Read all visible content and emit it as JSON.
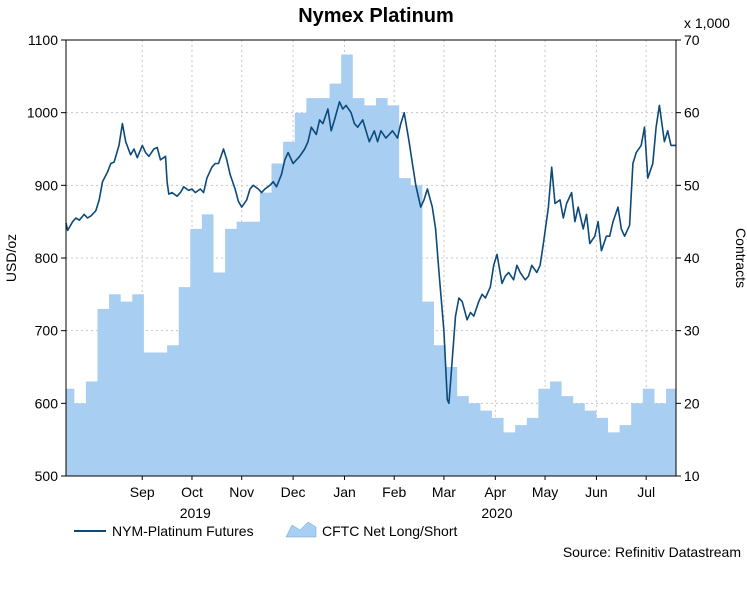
{
  "chart_data": {
    "type": "line",
    "title": "Nymex Platinum",
    "left_axis": {
      "label": "USD/oz",
      "ylim": [
        500,
        1100
      ],
      "ticks": [
        500,
        600,
        700,
        800,
        900,
        1000,
        1100
      ]
    },
    "right_axis": {
      "label": "Contracts",
      "multiplier_label": "x 1,000",
      "ylim": [
        10,
        70
      ],
      "ticks": [
        10,
        20,
        30,
        40,
        50,
        60,
        70
      ]
    },
    "x_axis": {
      "xlim": [
        "2019-08-01",
        "2020-08-03"
      ],
      "month_ticks": [
        {
          "label": "Sep",
          "date": "2019-09-16"
        },
        {
          "label": "Oct",
          "date": "2019-10-16"
        },
        {
          "label": "Nov",
          "date": "2019-11-15"
        },
        {
          "label": "Dec",
          "date": "2019-12-16"
        },
        {
          "label": "Jan",
          "date": "2020-01-16"
        },
        {
          "label": "Feb",
          "date": "2020-02-15"
        },
        {
          "label": "Mar",
          "date": "2020-03-16"
        },
        {
          "label": "Apr",
          "date": "2020-04-16"
        },
        {
          "label": "May",
          "date": "2020-05-16"
        },
        {
          "label": "Jun",
          "date": "2020-06-16"
        },
        {
          "label": "Jul",
          "date": "2020-07-16"
        }
      ],
      "year_labels": [
        {
          "label": "2019",
          "date": "2019-10-18"
        },
        {
          "label": "2020",
          "date": "2020-04-17"
        }
      ],
      "gridlines": true
    },
    "series": [
      {
        "name": "NYM-Platinum Futures",
        "axis": "left",
        "style": "line",
        "color": "#0d4a7a",
        "points": [
          [
            "2019-08-01",
            848
          ],
          [
            "2019-08-02",
            838
          ],
          [
            "2019-08-05",
            850
          ],
          [
            "2019-08-07",
            855
          ],
          [
            "2019-08-09",
            852
          ],
          [
            "2019-08-12",
            860
          ],
          [
            "2019-08-14",
            855
          ],
          [
            "2019-08-16",
            858
          ],
          [
            "2019-08-19",
            865
          ],
          [
            "2019-08-21",
            880
          ],
          [
            "2019-08-23",
            905
          ],
          [
            "2019-08-26",
            918
          ],
          [
            "2019-08-28",
            930
          ],
          [
            "2019-08-30",
            932
          ],
          [
            "2019-09-02",
            955
          ],
          [
            "2019-09-04",
            985
          ],
          [
            "2019-09-06",
            960
          ],
          [
            "2019-09-09",
            942
          ],
          [
            "2019-09-11",
            950
          ],
          [
            "2019-09-13",
            938
          ],
          [
            "2019-09-16",
            955
          ],
          [
            "2019-09-18",
            945
          ],
          [
            "2019-09-20",
            940
          ],
          [
            "2019-09-23",
            950
          ],
          [
            "2019-09-25",
            952
          ],
          [
            "2019-09-27",
            935
          ],
          [
            "2019-09-30",
            940
          ],
          [
            "2019-10-01",
            905
          ],
          [
            "2019-10-02",
            888
          ],
          [
            "2019-10-04",
            890
          ],
          [
            "2019-10-07",
            885
          ],
          [
            "2019-10-09",
            890
          ],
          [
            "2019-10-11",
            898
          ],
          [
            "2019-10-14",
            893
          ],
          [
            "2019-10-16",
            895
          ],
          [
            "2019-10-18",
            890
          ],
          [
            "2019-10-21",
            895
          ],
          [
            "2019-10-23",
            890
          ],
          [
            "2019-10-25",
            910
          ],
          [
            "2019-10-28",
            925
          ],
          [
            "2019-10-30",
            930
          ],
          [
            "2019-11-01",
            930
          ],
          [
            "2019-11-04",
            950
          ],
          [
            "2019-11-06",
            935
          ],
          [
            "2019-11-08",
            915
          ],
          [
            "2019-11-11",
            895
          ],
          [
            "2019-11-13",
            878
          ],
          [
            "2019-11-15",
            870
          ],
          [
            "2019-11-18",
            880
          ],
          [
            "2019-11-20",
            895
          ],
          [
            "2019-11-22",
            900
          ],
          [
            "2019-11-25",
            895
          ],
          [
            "2019-11-27",
            890
          ],
          [
            "2019-11-29",
            895
          ],
          [
            "2019-12-02",
            900
          ],
          [
            "2019-12-04",
            905
          ],
          [
            "2019-12-06",
            898
          ],
          [
            "2019-12-09",
            915
          ],
          [
            "2019-12-11",
            935
          ],
          [
            "2019-12-13",
            945
          ],
          [
            "2019-12-16",
            930
          ],
          [
            "2019-12-18",
            935
          ],
          [
            "2019-12-20",
            940
          ],
          [
            "2019-12-23",
            950
          ],
          [
            "2019-12-25",
            960
          ],
          [
            "2019-12-27",
            980
          ],
          [
            "2019-12-30",
            970
          ],
          [
            "2020-01-01",
            990
          ],
          [
            "2020-01-03",
            985
          ],
          [
            "2020-01-06",
            1005
          ],
          [
            "2020-01-08",
            975
          ],
          [
            "2020-01-10",
            990
          ],
          [
            "2020-01-13",
            1015
          ],
          [
            "2020-01-15",
            1005
          ],
          [
            "2020-01-17",
            1010
          ],
          [
            "2020-01-20",
            1000
          ],
          [
            "2020-01-22",
            985
          ],
          [
            "2020-01-24",
            980
          ],
          [
            "2020-01-27",
            990
          ],
          [
            "2020-01-29",
            975
          ],
          [
            "2020-01-31",
            960
          ],
          [
            "2020-02-03",
            975
          ],
          [
            "2020-02-05",
            960
          ],
          [
            "2020-02-07",
            975
          ],
          [
            "2020-02-10",
            965
          ],
          [
            "2020-02-12",
            970
          ],
          [
            "2020-02-14",
            975
          ],
          [
            "2020-02-17",
            965
          ],
          [
            "2020-02-19",
            985
          ],
          [
            "2020-02-21",
            1000
          ],
          [
            "2020-02-24",
            960
          ],
          [
            "2020-02-26",
            930
          ],
          [
            "2020-02-28",
            900
          ],
          [
            "2020-03-02",
            870
          ],
          [
            "2020-03-04",
            880
          ],
          [
            "2020-03-06",
            895
          ],
          [
            "2020-03-09",
            870
          ],
          [
            "2020-03-11",
            840
          ],
          [
            "2020-03-13",
            780
          ],
          [
            "2020-03-16",
            700
          ],
          [
            "2020-03-18",
            605
          ],
          [
            "2020-03-19",
            600
          ],
          [
            "2020-03-20",
            630
          ],
          [
            "2020-03-23",
            720
          ],
          [
            "2020-03-25",
            745
          ],
          [
            "2020-03-27",
            740
          ],
          [
            "2020-03-30",
            715
          ],
          [
            "2020-04-01",
            725
          ],
          [
            "2020-04-03",
            720
          ],
          [
            "2020-04-06",
            740
          ],
          [
            "2020-04-08",
            750
          ],
          [
            "2020-04-10",
            745
          ],
          [
            "2020-04-13",
            760
          ],
          [
            "2020-04-15",
            790
          ],
          [
            "2020-04-17",
            805
          ],
          [
            "2020-04-20",
            765
          ],
          [
            "2020-04-22",
            775
          ],
          [
            "2020-04-24",
            780
          ],
          [
            "2020-04-27",
            770
          ],
          [
            "2020-04-29",
            790
          ],
          [
            "2020-05-01",
            780
          ],
          [
            "2020-05-04",
            770
          ],
          [
            "2020-05-06",
            775
          ],
          [
            "2020-05-08",
            790
          ],
          [
            "2020-05-11",
            780
          ],
          [
            "2020-05-13",
            790
          ],
          [
            "2020-05-15",
            820
          ],
          [
            "2020-05-18",
            870
          ],
          [
            "2020-05-20",
            925
          ],
          [
            "2020-05-22",
            875
          ],
          [
            "2020-05-25",
            880
          ],
          [
            "2020-05-27",
            855
          ],
          [
            "2020-05-29",
            875
          ],
          [
            "2020-06-01",
            890
          ],
          [
            "2020-06-03",
            850
          ],
          [
            "2020-06-05",
            870
          ],
          [
            "2020-06-08",
            840
          ],
          [
            "2020-06-10",
            860
          ],
          [
            "2020-06-12",
            820
          ],
          [
            "2020-06-15",
            830
          ],
          [
            "2020-06-17",
            850
          ],
          [
            "2020-06-19",
            810
          ],
          [
            "2020-06-22",
            830
          ],
          [
            "2020-06-24",
            830
          ],
          [
            "2020-06-26",
            850
          ],
          [
            "2020-06-29",
            870
          ],
          [
            "2020-07-01",
            840
          ],
          [
            "2020-07-03",
            830
          ],
          [
            "2020-07-06",
            845
          ],
          [
            "2020-07-08",
            930
          ],
          [
            "2020-07-10",
            945
          ],
          [
            "2020-07-13",
            955
          ],
          [
            "2020-07-15",
            980
          ],
          [
            "2020-07-17",
            910
          ],
          [
            "2020-07-20",
            930
          ],
          [
            "2020-07-22",
            980
          ],
          [
            "2020-07-24",
            1010
          ],
          [
            "2020-07-27",
            960
          ],
          [
            "2020-07-29",
            975
          ],
          [
            "2020-07-31",
            955
          ],
          [
            "2020-08-03",
            955
          ]
        ]
      },
      {
        "name": "CFTC Net Long/Short",
        "axis": "right",
        "style": "area",
        "color": "#a8cef1",
        "points": [
          [
            "2019-08-01",
            22
          ],
          [
            "2019-08-06",
            22
          ],
          [
            "2019-08-06",
            20
          ],
          [
            "2019-08-13",
            20
          ],
          [
            "2019-08-13",
            23
          ],
          [
            "2019-08-20",
            23
          ],
          [
            "2019-08-20",
            33
          ],
          [
            "2019-08-27",
            33
          ],
          [
            "2019-08-27",
            35
          ],
          [
            "2019-09-03",
            35
          ],
          [
            "2019-09-03",
            34
          ],
          [
            "2019-09-10",
            34
          ],
          [
            "2019-09-10",
            35
          ],
          [
            "2019-09-17",
            35
          ],
          [
            "2019-09-17",
            27
          ],
          [
            "2019-09-24",
            27
          ],
          [
            "2019-09-24",
            27
          ],
          [
            "2019-10-01",
            27
          ],
          [
            "2019-10-01",
            28
          ],
          [
            "2019-10-08",
            28
          ],
          [
            "2019-10-08",
            36
          ],
          [
            "2019-10-15",
            36
          ],
          [
            "2019-10-15",
            44
          ],
          [
            "2019-10-22",
            44
          ],
          [
            "2019-10-22",
            46
          ],
          [
            "2019-10-29",
            46
          ],
          [
            "2019-10-29",
            38
          ],
          [
            "2019-11-05",
            38
          ],
          [
            "2019-11-05",
            44
          ],
          [
            "2019-11-12",
            44
          ],
          [
            "2019-11-12",
            45
          ],
          [
            "2019-11-19",
            45
          ],
          [
            "2019-11-19",
            45
          ],
          [
            "2019-11-26",
            45
          ],
          [
            "2019-11-26",
            49
          ],
          [
            "2019-12-03",
            49
          ],
          [
            "2019-12-03",
            53
          ],
          [
            "2019-12-10",
            53
          ],
          [
            "2019-12-10",
            56
          ],
          [
            "2019-12-17",
            56
          ],
          [
            "2019-12-17",
            60
          ],
          [
            "2019-12-24",
            60
          ],
          [
            "2019-12-24",
            62
          ],
          [
            "2019-12-31",
            62
          ],
          [
            "2019-12-31",
            62
          ],
          [
            "2020-01-07",
            62
          ],
          [
            "2020-01-07",
            64
          ],
          [
            "2020-01-14",
            64
          ],
          [
            "2020-01-14",
            68
          ],
          [
            "2020-01-21",
            68
          ],
          [
            "2020-01-21",
            62
          ],
          [
            "2020-01-28",
            62
          ],
          [
            "2020-01-28",
            61
          ],
          [
            "2020-02-04",
            61
          ],
          [
            "2020-02-04",
            62
          ],
          [
            "2020-02-11",
            62
          ],
          [
            "2020-02-11",
            61
          ],
          [
            "2020-02-18",
            61
          ],
          [
            "2020-02-18",
            51
          ],
          [
            "2020-02-25",
            51
          ],
          [
            "2020-02-25",
            50
          ],
          [
            "2020-03-03",
            50
          ],
          [
            "2020-03-03",
            34
          ],
          [
            "2020-03-10",
            34
          ],
          [
            "2020-03-10",
            28
          ],
          [
            "2020-03-17",
            28
          ],
          [
            "2020-03-17",
            25
          ],
          [
            "2020-03-24",
            25
          ],
          [
            "2020-03-24",
            21
          ],
          [
            "2020-03-31",
            21
          ],
          [
            "2020-03-31",
            20
          ],
          [
            "2020-04-07",
            20
          ],
          [
            "2020-04-07",
            19
          ],
          [
            "2020-04-14",
            19
          ],
          [
            "2020-04-14",
            18
          ],
          [
            "2020-04-21",
            18
          ],
          [
            "2020-04-21",
            16
          ],
          [
            "2020-04-28",
            16
          ],
          [
            "2020-04-28",
            17
          ],
          [
            "2020-05-05",
            17
          ],
          [
            "2020-05-05",
            18
          ],
          [
            "2020-05-12",
            18
          ],
          [
            "2020-05-12",
            22
          ],
          [
            "2020-05-19",
            22
          ],
          [
            "2020-05-19",
            23
          ],
          [
            "2020-05-26",
            23
          ],
          [
            "2020-05-26",
            21
          ],
          [
            "2020-06-02",
            21
          ],
          [
            "2020-06-02",
            20
          ],
          [
            "2020-06-09",
            20
          ],
          [
            "2020-06-09",
            19
          ],
          [
            "2020-06-16",
            19
          ],
          [
            "2020-06-16",
            18
          ],
          [
            "2020-06-23",
            18
          ],
          [
            "2020-06-23",
            16
          ],
          [
            "2020-06-30",
            16
          ],
          [
            "2020-06-30",
            17
          ],
          [
            "2020-07-07",
            17
          ],
          [
            "2020-07-07",
            20
          ],
          [
            "2020-07-14",
            20
          ],
          [
            "2020-07-14",
            22
          ],
          [
            "2020-07-21",
            22
          ],
          [
            "2020-07-21",
            20
          ],
          [
            "2020-07-28",
            20
          ],
          [
            "2020-07-28",
            22
          ],
          [
            "2020-08-03",
            22
          ]
        ]
      }
    ],
    "legend": {
      "placement": "bottom-left"
    },
    "source": "Source: Refinitiv Datastream"
  }
}
